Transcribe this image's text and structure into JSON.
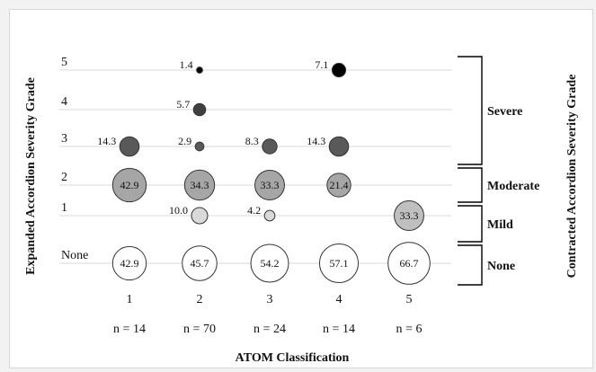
{
  "chart_data": {
    "type": "scatter",
    "title": "",
    "xlabel": "ATOM Classification",
    "ylabel": "Expanded Accordion Severity Grade",
    "ylabel_right": "Contracted Accordion Severity Grade",
    "x_categories": [
      "1",
      "2",
      "3",
      "4",
      "5"
    ],
    "n_labels": [
      "n = 14",
      "n = 70",
      "n = 24",
      "n = 14",
      "n = 6"
    ],
    "y_categories": [
      "None",
      "1",
      "2",
      "3",
      "4",
      "5"
    ],
    "grid": true,
    "legend": "none",
    "points": [
      {
        "x": "1",
        "y": "None",
        "value": 42.9,
        "label": "42.9",
        "color": "#ffffff"
      },
      {
        "x": "2",
        "y": "None",
        "value": 45.7,
        "label": "45.7",
        "color": "#ffffff"
      },
      {
        "x": "3",
        "y": "None",
        "value": 54.2,
        "label": "54.2",
        "color": "#ffffff"
      },
      {
        "x": "4",
        "y": "None",
        "value": 57.1,
        "label": "57.1",
        "color": "#ffffff"
      },
      {
        "x": "5",
        "y": "None",
        "value": 66.7,
        "label": "66.7",
        "color": "#ffffff"
      },
      {
        "x": "2",
        "y": "1",
        "value": 10.0,
        "label": "10.0",
        "color": "#d9d9d9"
      },
      {
        "x": "3",
        "y": "1",
        "value": 4.2,
        "label": "4.2",
        "color": "#d9d9d9"
      },
      {
        "x": "5",
        "y": "1",
        "value": 33.3,
        "label": "33.3",
        "color": "#bfbfbf"
      },
      {
        "x": "1",
        "y": "2",
        "value": 42.9,
        "label": "42.9",
        "color": "#a6a6a6"
      },
      {
        "x": "2",
        "y": "2",
        "value": 34.3,
        "label": "34.3",
        "color": "#a6a6a6"
      },
      {
        "x": "3",
        "y": "2",
        "value": 33.3,
        "label": "33.3",
        "color": "#a6a6a6"
      },
      {
        "x": "4",
        "y": "2",
        "value": 21.4,
        "label": "21.4",
        "color": "#a6a6a6"
      },
      {
        "x": "1",
        "y": "3",
        "value": 14.3,
        "label": "14.3",
        "color": "#595959"
      },
      {
        "x": "2",
        "y": "3",
        "value": 2.9,
        "label": "2.9",
        "color": "#595959"
      },
      {
        "x": "3",
        "y": "3",
        "value": 8.3,
        "label": "8.3",
        "color": "#595959"
      },
      {
        "x": "4",
        "y": "3",
        "value": 14.3,
        "label": "14.3",
        "color": "#595959"
      },
      {
        "x": "2",
        "y": "4",
        "value": 5.7,
        "label": "5.7",
        "color": "#404040"
      },
      {
        "x": "2",
        "y": "5",
        "value": 1.4,
        "label": "1.4",
        "color": "#000000"
      },
      {
        "x": "4",
        "y": "5",
        "value": 7.1,
        "label": "7.1",
        "color": "#000000"
      }
    ],
    "brackets": [
      {
        "label": "Severe",
        "from": "3",
        "to": "5"
      },
      {
        "label": "Moderate",
        "from": "2",
        "to": "2"
      },
      {
        "label": "Mild",
        "from": "1",
        "to": "1"
      },
      {
        "label": "None",
        "from": "None",
        "to": "None"
      }
    ]
  }
}
